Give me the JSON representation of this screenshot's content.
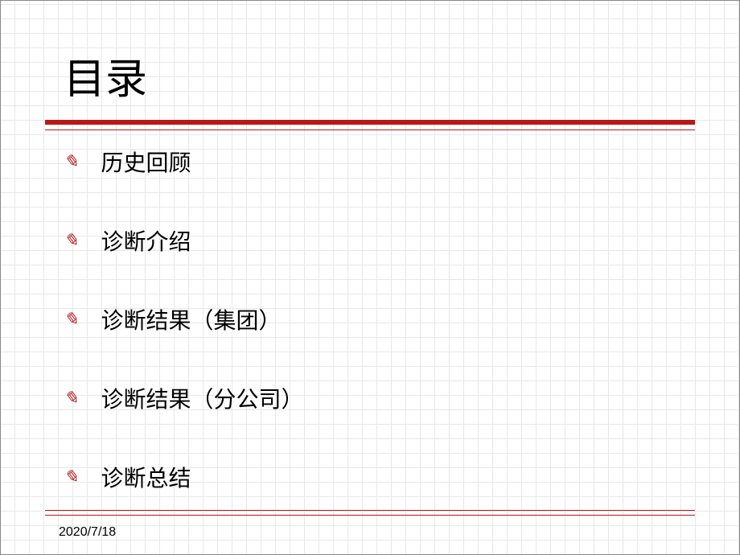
{
  "title": "目录",
  "items": [
    "历史回顾",
    "诊断介绍",
    "诊断结果（集团）",
    "诊断结果（分公司）",
    "诊断总结"
  ],
  "date": "2020/7/18",
  "colors": {
    "accent": "#b81818",
    "text": "#000000",
    "grid": "#e8e8e8",
    "background": "#ffffff"
  },
  "fonts": {
    "title_size": 52,
    "item_size": 28,
    "date_size": 16
  }
}
